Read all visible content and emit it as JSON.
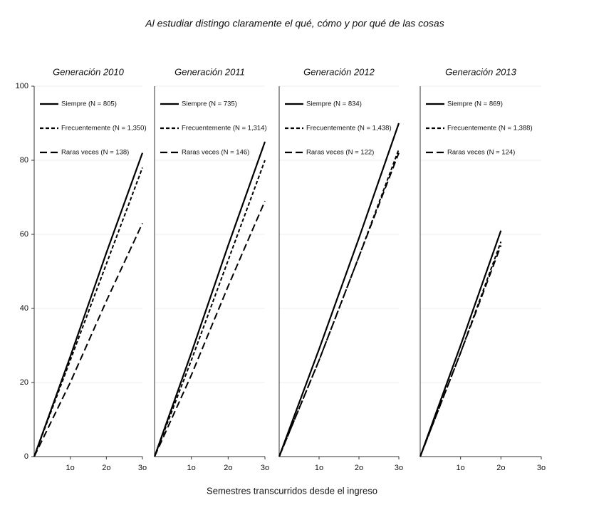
{
  "title": "Al estudiar distingo claramente el qué, cómo y por qué de las cosas",
  "x_label": "Semestres transcurridos desde el ingreso",
  "chart_data": [
    {
      "type": "line",
      "title": "Generación 2010",
      "x": [
        0,
        1,
        2,
        3
      ],
      "xlim": [
        0,
        3
      ],
      "xticks": [
        {
          "value": 1,
          "label": "1o"
        },
        {
          "value": 2,
          "label": "2o"
        },
        {
          "value": 3,
          "label": "3o"
        }
      ],
      "ylim": [
        0,
        100
      ],
      "yticks": [
        0,
        20,
        40,
        60,
        80,
        100
      ],
      "grid": true,
      "series": [
        {
          "name": "Siempre (N = 805)",
          "color": "#000000",
          "dash": "solid",
          "values": [
            0,
            27,
            55,
            82
          ]
        },
        {
          "name": "Frecuentemente (N = 1,350)",
          "color": "#000000",
          "dash": "short",
          "values": [
            0,
            26,
            52,
            78
          ]
        },
        {
          "name": "Raras veces (N = 138)",
          "color": "#000000",
          "dash": "long",
          "values": [
            0,
            20,
            42,
            63
          ]
        }
      ]
    },
    {
      "type": "line",
      "title": "Generación 2011",
      "x": [
        0,
        1,
        2,
        3
      ],
      "xlim": [
        0,
        3
      ],
      "xticks": [
        {
          "value": 1,
          "label": "1o"
        },
        {
          "value": 2,
          "label": "2o"
        },
        {
          "value": 3,
          "label": "3o"
        }
      ],
      "ylim": [
        0,
        100
      ],
      "grid": true,
      "series": [
        {
          "name": "Siempre (N = 735)",
          "color": "#000000",
          "dash": "solid",
          "values": [
            0,
            28,
            57,
            85
          ]
        },
        {
          "name": "Frecuentemente (N = 1,314)",
          "color": "#000000",
          "dash": "short",
          "values": [
            0,
            26,
            53,
            80
          ]
        },
        {
          "name": "Raras veces (N = 146)",
          "color": "#000000",
          "dash": "long",
          "values": [
            0,
            22,
            46,
            69
          ]
        }
      ]
    },
    {
      "type": "line",
      "title": "Generación 2012",
      "x": [
        0,
        1,
        2,
        3
      ],
      "xlim": [
        0,
        3
      ],
      "xticks": [
        {
          "value": 1,
          "label": "1o"
        },
        {
          "value": 2,
          "label": "2o"
        },
        {
          "value": 3,
          "label": "3o"
        }
      ],
      "ylim": [
        0,
        100
      ],
      "grid": true,
      "series": [
        {
          "name": "Siempre (N = 834)",
          "color": "#000000",
          "dash": "solid",
          "values": [
            0,
            29,
            59,
            90
          ]
        },
        {
          "name": "Frecuentemente (N = 1,438)",
          "color": "#000000",
          "dash": "short",
          "values": [
            0,
            26,
            54,
            83
          ]
        },
        {
          "name": "Raras veces (N = 122)",
          "color": "#000000",
          "dash": "long",
          "values": [
            0,
            26,
            54,
            82
          ]
        }
      ]
    },
    {
      "type": "line",
      "title": "Generación 2013",
      "x": [
        0,
        1,
        2,
        3
      ],
      "xlim": [
        0,
        3
      ],
      "xticks": [
        {
          "value": 1,
          "label": "1o"
        },
        {
          "value": 2,
          "label": "2o"
        },
        {
          "value": 3,
          "label": "3o"
        }
      ],
      "ylim": [
        0,
        100
      ],
      "grid": true,
      "series": [
        {
          "name": "Siempre (N = 869)",
          "color": "#000000",
          "dash": "solid",
          "values": [
            0,
            30,
            61,
            null
          ]
        },
        {
          "name": "Frecuentemente (N = 1,388)",
          "color": "#000000",
          "dash": "short",
          "values": [
            0,
            28,
            58,
            null
          ]
        },
        {
          "name": "Raras veces (N = 124)",
          "color": "#000000",
          "dash": "long",
          "values": [
            0,
            28,
            57,
            null
          ]
        }
      ]
    }
  ]
}
